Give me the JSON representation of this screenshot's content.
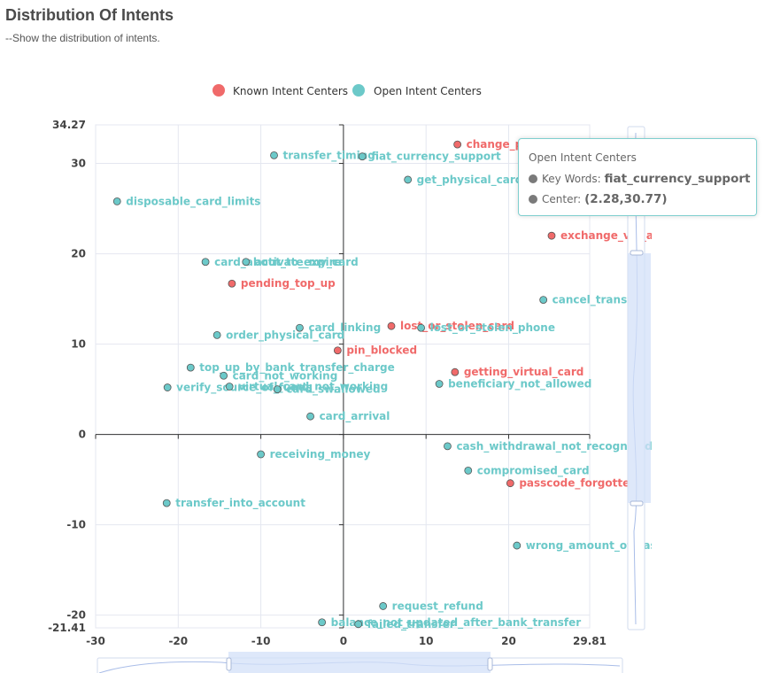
{
  "page": {
    "title": "Distribution Of Intents",
    "subtitle": "--Show the distribution of intents."
  },
  "legend": {
    "known_label": "Known Intent Centers",
    "open_label": "Open Intent Centers",
    "known_color": "#f06a6a",
    "open_color": "#6cc9c9"
  },
  "tooltip": {
    "title": "Open Intent Centers",
    "keywords_label": "Key Words:",
    "keywords_value": "fiat_currency_support",
    "center_label": "Center:",
    "center_value": "(2.28,30.77)"
  },
  "chart_data": {
    "type": "scatter",
    "title": "Distribution Of Intents",
    "xlim": [
      -30,
      29.81
    ],
    "ylim": [
      -21.41,
      34.27
    ],
    "x_ticks": [
      "-30",
      "-20",
      "-10",
      "0",
      "10",
      "20",
      "29.81"
    ],
    "y_ticks": [
      "34.27",
      "30",
      "20",
      "10",
      "0",
      "-10",
      "-20",
      "-21.41"
    ],
    "grid": true,
    "legend_position": "top-center",
    "series": [
      {
        "name": "Known Intent Centers",
        "color": "#f06a6a",
        "points": [
          {
            "label": "change_pin",
            "x": 13.8,
            "y": 32.1
          },
          {
            "label": "exchange_via_app",
            "x": 25.2,
            "y": 22.0
          },
          {
            "label": "pending_top_up",
            "x": -13.5,
            "y": 16.7
          },
          {
            "label": "lost_or_stolen_card",
            "x": 5.8,
            "y": 12.0
          },
          {
            "label": "pin_blocked",
            "x": -0.7,
            "y": 9.3
          },
          {
            "label": "getting_virtual_card",
            "x": 13.5,
            "y": 6.9
          },
          {
            "label": "passcode_forgotten",
            "x": 20.2,
            "y": -5.4
          }
        ]
      },
      {
        "name": "Open Intent Centers",
        "color": "#6cc9c9",
        "points": [
          {
            "label": "transfer_timing",
            "x": -8.4,
            "y": 30.9
          },
          {
            "label": "fiat_currency_support",
            "x": 2.28,
            "y": 30.77
          },
          {
            "label": "get_physical_card",
            "x": 7.8,
            "y": 28.2
          },
          {
            "label": "disposable_card_limits",
            "x": -27.4,
            "y": 25.8
          },
          {
            "label": "card_about_to_expire",
            "x": -16.7,
            "y": 19.1
          },
          {
            "label": "activate_my_card",
            "x": -11.8,
            "y": 19.1
          },
          {
            "label": "cancel_transfer",
            "x": 24.2,
            "y": 14.9
          },
          {
            "label": "card_linking",
            "x": -5.3,
            "y": 11.8
          },
          {
            "label": "lost_or_stolen_phone",
            "x": 9.4,
            "y": 11.8
          },
          {
            "label": "order_physical_card",
            "x": -15.3,
            "y": 11.0
          },
          {
            "label": "top_up_by_bank_transfer_charge",
            "x": -18.5,
            "y": 7.4
          },
          {
            "label": "card_not_working",
            "x": -14.5,
            "y": 6.5
          },
          {
            "label": "beneficiary_not_allowed",
            "x": 11.6,
            "y": 5.6
          },
          {
            "label": "verify_source_of_funds",
            "x": -21.3,
            "y": 5.2
          },
          {
            "label": "virtual_card_not_working",
            "x": -13.8,
            "y": 5.3
          },
          {
            "label": "card_swallowed",
            "x": -8.0,
            "y": 5.0
          },
          {
            "label": "card_arrival",
            "x": -4.0,
            "y": 2.0
          },
          {
            "label": "cash_withdrawal_not_recognised",
            "x": 12.6,
            "y": -1.3
          },
          {
            "label": "receiving_money",
            "x": -10.0,
            "y": -2.2
          },
          {
            "label": "compromised_card",
            "x": 15.1,
            "y": -4.0
          },
          {
            "label": "transfer_into_account",
            "x": -21.4,
            "y": -7.6
          },
          {
            "label": "wrong_amount_of_cash_received",
            "x": 21.0,
            "y": -12.3
          },
          {
            "label": "request_refund",
            "x": 4.8,
            "y": -19.0
          },
          {
            "label": "balance_not_updated_after_bank_transfer",
            "x": -2.6,
            "y": -20.8
          },
          {
            "label": "failed_transfer",
            "x": 1.8,
            "y": -21.0
          }
        ]
      }
    ]
  }
}
